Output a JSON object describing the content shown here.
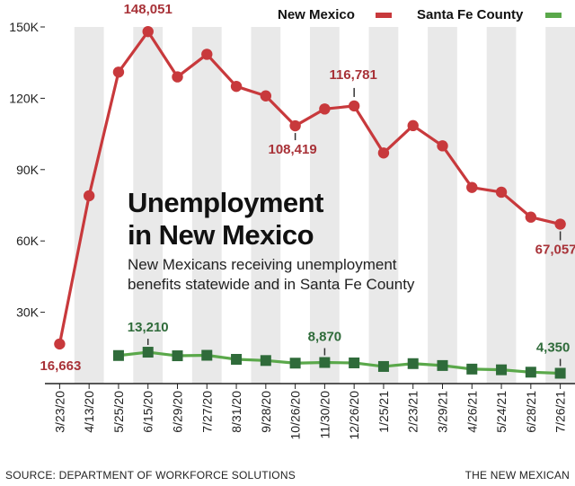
{
  "chart_data": {
    "type": "line",
    "title": "Unemployment in New Mexico",
    "title_lines": [
      "Unemployment",
      "in New Mexico"
    ],
    "subtitle_lines": [
      "New Mexicans receiving unemployment",
      "benefits statewide and in Santa Fe County"
    ],
    "categories": [
      "3/23/20",
      "4/13/20",
      "5/25/20",
      "6/15/20",
      "6/29/20",
      "7/27/20",
      "8/31/20",
      "9/28/20",
      "10/26/20",
      "11/30/20",
      "12/26/20",
      "1/25/21",
      "2/23/21",
      "3/29/21",
      "4/26/21",
      "5/24/21",
      "6/28/21",
      "7/26/21"
    ],
    "yticks": [
      "30K",
      "60K",
      "90K",
      "120K",
      "150K"
    ],
    "ytick_values": [
      30000,
      60000,
      90000,
      120000,
      150000
    ],
    "ylim": [
      0,
      150000
    ],
    "grid": "alternating vertical bands",
    "legend_position": "top-right",
    "series": [
      {
        "name": "New Mexico",
        "color": "#c8393c",
        "marker": "circle",
        "values": [
          16663,
          79000,
          131000,
          148051,
          129000,
          138500,
          125000,
          121000,
          108419,
          115500,
          116781,
          97000,
          108500,
          100000,
          82500,
          80500,
          70000,
          67057
        ]
      },
      {
        "name": "Santa Fe County",
        "color": "#5aa84a",
        "marker": "square",
        "values": [
          null,
          null,
          11800,
          13210,
          11700,
          11900,
          10200,
          9700,
          8600,
          8870,
          8700,
          7200,
          8400,
          7600,
          6100,
          5800,
          4800,
          4350
        ]
      }
    ],
    "annotations": [
      {
        "series": 0,
        "index": 0,
        "text": "16,663",
        "color": "#a83238"
      },
      {
        "series": 0,
        "index": 3,
        "text": "148,051",
        "color": "#a83238"
      },
      {
        "series": 0,
        "index": 8,
        "text": "108,419",
        "color": "#a83238"
      },
      {
        "series": 0,
        "index": 10,
        "text": "116,781",
        "color": "#a83238"
      },
      {
        "series": 0,
        "index": 17,
        "text": "67,057",
        "color": "#a83238"
      },
      {
        "series": 1,
        "index": 3,
        "text": "13,210",
        "color": "#2f6b3a"
      },
      {
        "series": 1,
        "index": 9,
        "text": "8,870",
        "color": "#2f6b3a"
      },
      {
        "series": 1,
        "index": 17,
        "text": "4,350",
        "color": "#2f6b3a"
      }
    ]
  },
  "footer": {
    "source": "SOURCE: DEPARTMENT OF WORKFORCE SOLUTIONS",
    "credit": "THE NEW MEXICAN"
  }
}
